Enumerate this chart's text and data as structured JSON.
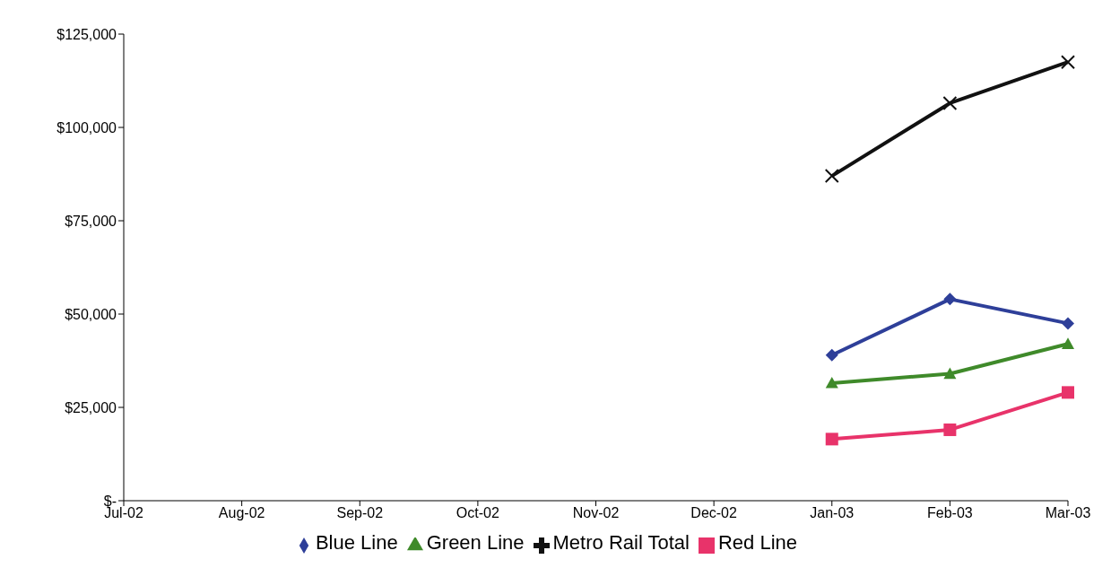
{
  "chart_data": {
    "type": "line",
    "categories": [
      "Jul-02",
      "Aug-02",
      "Sep-02",
      "Oct-02",
      "Nov-02",
      "Dec-02",
      "Jan-03",
      "Feb-03",
      "Mar-03"
    ],
    "series": [
      {
        "name": "Blue Line",
        "color": "#2e3f99",
        "marker": "diamond",
        "values": [
          null,
          null,
          null,
          null,
          null,
          null,
          39000,
          54000,
          47500
        ]
      },
      {
        "name": "Red Line",
        "color": "#e8336a",
        "marker": "square",
        "values": [
          null,
          null,
          null,
          null,
          null,
          null,
          16500,
          19000,
          29000
        ]
      },
      {
        "name": "Green Line",
        "color": "#3f8a2a",
        "marker": "triangle",
        "values": [
          null,
          null,
          null,
          null,
          null,
          null,
          31500,
          34000,
          42000
        ]
      },
      {
        "name": "Metro Rail Total",
        "color": "#111111",
        "marker": "cross",
        "values": [
          null,
          null,
          null,
          null,
          null,
          null,
          87000,
          106500,
          117500
        ]
      }
    ],
    "ylim": [
      0,
      125000
    ],
    "yticks": [
      {
        "value": 0,
        "label": "$-"
      },
      {
        "value": 25000,
        "label": "$25,000"
      },
      {
        "value": 50000,
        "label": "$50,000"
      },
      {
        "value": 75000,
        "label": "$75,000"
      },
      {
        "value": 100000,
        "label": "$100,000"
      },
      {
        "value": 125000,
        "label": "$125,000"
      }
    ],
    "grid": false,
    "legend": "bottom",
    "line_style": "solid"
  }
}
